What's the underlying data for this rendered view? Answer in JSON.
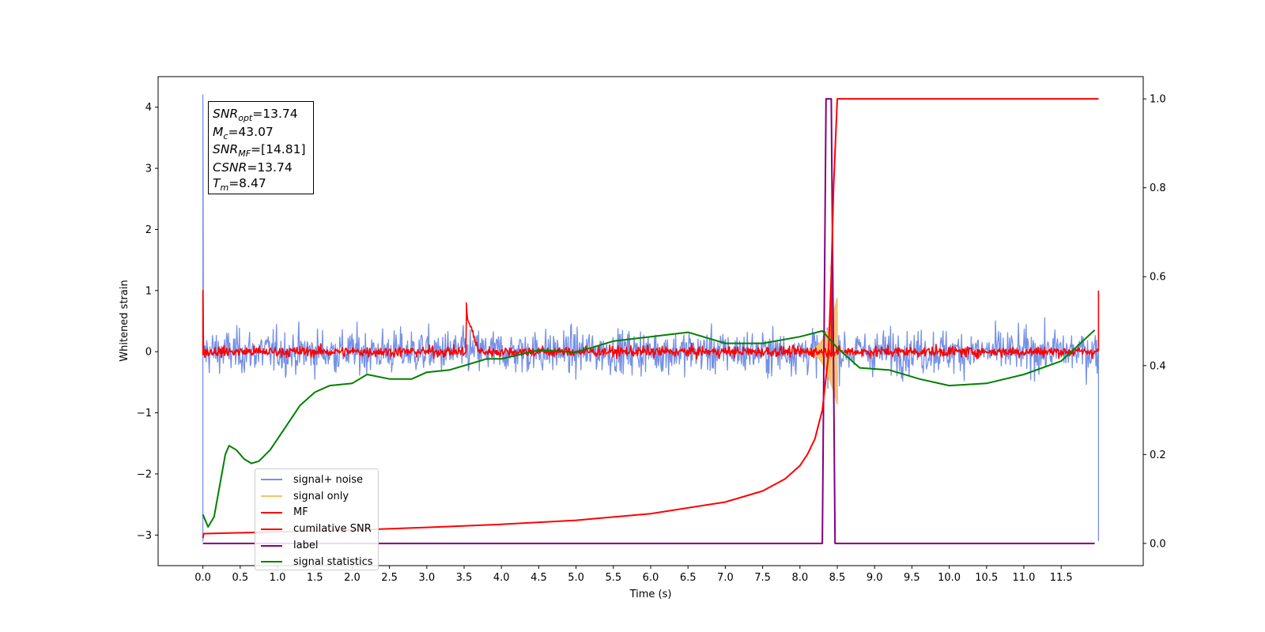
{
  "chart_data": {
    "type": "line",
    "title": "",
    "xlabel": "Time (s)",
    "ylabel": "Whitened strain",
    "y2label": "",
    "xlim": [
      -0.6,
      12.6
    ],
    "ylim": [
      -3.5,
      4.5
    ],
    "y2lim": [
      -0.05,
      1.05
    ],
    "x_ticks": [
      0.0,
      0.5,
      1.0,
      1.5,
      2.0,
      2.5,
      3.0,
      3.5,
      4.0,
      4.5,
      5.0,
      5.5,
      6.0,
      6.5,
      7.0,
      7.5,
      8.0,
      8.5,
      9.0,
      9.5,
      10.0,
      10.5,
      11.0,
      11.5
    ],
    "x_tick_labels": [
      "0.0",
      "0.5",
      "1.0",
      "1.5",
      "2.0",
      "2.5",
      "3.0",
      "3.5",
      "4.0",
      "4.5",
      "5.0",
      "5.5",
      "6.0",
      "6.5",
      "7.0",
      "7.5",
      "8.0",
      "8.5",
      "9.0",
      "9.5",
      "10.0",
      "10.5",
      "11.0",
      "11.5"
    ],
    "y_ticks": [
      -3,
      -2,
      -1,
      0,
      1,
      2,
      3,
      4
    ],
    "y_tick_labels": [
      "−3",
      "−2",
      "−1",
      "0",
      "1",
      "2",
      "3",
      "4"
    ],
    "y2_ticks": [
      0.0,
      0.2,
      0.4,
      0.6,
      0.8,
      1.0
    ],
    "y2_tick_labels": [
      "0.0",
      "0.2",
      "0.4",
      "0.6",
      "0.8",
      "1.0"
    ],
    "grid": false,
    "legend_position": "lower-left",
    "series": [
      {
        "name": "signal+ noise",
        "color": "#7590e6",
        "axis": "left",
        "kind": "noise",
        "x_range": [
          0.0,
          12.0
        ],
        "amplitude": 0.25,
        "spikes": [
          [
            0.0,
            4.2
          ],
          [
            0.0,
            -3.1
          ],
          [
            12.0,
            -3.1
          ]
        ]
      },
      {
        "name": "signal only",
        "color": "#f5c26b",
        "axis": "left",
        "kind": "chirp",
        "x": [
          0.0,
          8.0,
          8.3,
          8.4,
          8.45,
          8.5,
          12.0
        ],
        "y": [
          0.0,
          0.02,
          0.1,
          0.4,
          0.5,
          0.0,
          0.0
        ]
      },
      {
        "name": "MF",
        "color": "#ff0000",
        "axis": "left",
        "kind": "noise",
        "x_range": [
          0.0,
          12.0
        ],
        "amplitude": 0.06,
        "spikes": [
          [
            0.0,
            1.0
          ],
          [
            3.53,
            0.8
          ],
          [
            8.42,
            1.4
          ],
          [
            12.0,
            1.0
          ]
        ]
      },
      {
        "name": "cumilative SNR",
        "color": "#ff0000",
        "axis": "right",
        "x": [
          0.0,
          0.01,
          1.0,
          2.0,
          3.0,
          4.0,
          5.0,
          6.0,
          7.0,
          7.5,
          7.8,
          8.0,
          8.1,
          8.2,
          8.3,
          8.38,
          8.42,
          8.45,
          8.5,
          12.0
        ],
        "y": [
          0.012,
          0.022,
          0.026,
          0.03,
          0.036,
          0.043,
          0.052,
          0.067,
          0.093,
          0.118,
          0.145,
          0.175,
          0.2,
          0.235,
          0.3,
          0.42,
          0.6,
          0.8,
          1.0,
          1.0
        ]
      },
      {
        "name": "label",
        "color": "#800080",
        "axis": "right",
        "x": [
          0.0,
          8.3,
          8.35,
          8.42,
          8.47,
          11.95
        ],
        "y": [
          0.0,
          0.0,
          1.0,
          1.0,
          0.0,
          0.0
        ]
      },
      {
        "name": "signal statistics",
        "color": "#008000",
        "axis": "right",
        "x": [
          0.0,
          0.07,
          0.15,
          0.3,
          0.35,
          0.45,
          0.55,
          0.65,
          0.75,
          0.9,
          1.1,
          1.3,
          1.5,
          1.7,
          2.0,
          2.2,
          2.5,
          2.8,
          3.0,
          3.3,
          3.6,
          3.8,
          4.0,
          4.5,
          5.0,
          5.5,
          6.0,
          6.5,
          7.0,
          7.5,
          8.0,
          8.3,
          8.5,
          8.8,
          9.2,
          9.6,
          10.0,
          10.5,
          11.0,
          11.5,
          11.95
        ],
        "y": [
          0.065,
          0.037,
          0.06,
          0.2,
          0.22,
          0.21,
          0.19,
          0.18,
          0.185,
          0.21,
          0.26,
          0.31,
          0.34,
          0.355,
          0.36,
          0.38,
          0.37,
          0.37,
          0.385,
          0.39,
          0.405,
          0.415,
          0.415,
          0.435,
          0.43,
          0.455,
          0.465,
          0.475,
          0.45,
          0.45,
          0.465,
          0.478,
          0.44,
          0.395,
          0.39,
          0.37,
          0.355,
          0.36,
          0.38,
          0.41,
          0.48
        ]
      }
    ],
    "annotations": [
      {
        "sym": "SNR",
        "sub": "opt",
        "value": "=13.74"
      },
      {
        "sym": "M",
        "sub": "c",
        "value": "=43.07"
      },
      {
        "sym": "SNR",
        "sub": "MF",
        "value": "=[14.81]"
      },
      {
        "sym": "CSNR",
        "sub": "",
        "value": "=13.74"
      },
      {
        "sym": "T",
        "sub": "m",
        "value": "=8.47"
      }
    ]
  }
}
